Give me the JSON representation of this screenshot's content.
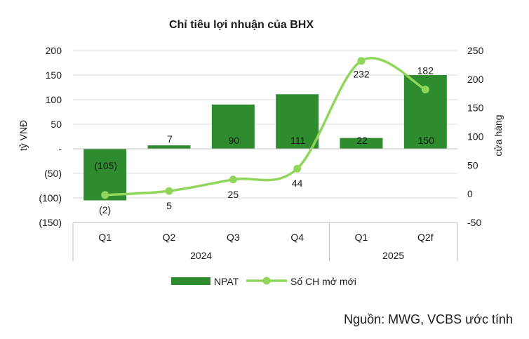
{
  "chart_data": {
    "type": "bar",
    "title": "Chỉ tiêu lợi nhuận của BHX",
    "ylabel": "tỷ VNĐ",
    "y2label": "cửa hàng",
    "categories": [
      "Q1",
      "Q2",
      "Q3",
      "Q4",
      "Q1",
      "Q2f"
    ],
    "groups": [
      {
        "label": "2024",
        "span": [
          0,
          3
        ]
      },
      {
        "label": "2025",
        "span": [
          4,
          5
        ]
      }
    ],
    "ylim": [
      -150,
      200
    ],
    "yticks": [
      200,
      150,
      100,
      50,
      0,
      -50,
      -100,
      -150
    ],
    "ytick_labels": [
      "200",
      "150",
      "100",
      "50",
      "-",
      "(50)",
      "(100)",
      "(150)"
    ],
    "y2lim": [
      -50,
      250
    ],
    "y2ticks": [
      250,
      200,
      150,
      100,
      50,
      0,
      -50
    ],
    "y2tick_labels": [
      "250",
      "200",
      "150",
      "100",
      "50",
      "0",
      "-50"
    ],
    "grid": true,
    "legend_position": "bottom",
    "series": [
      {
        "name": "NPAT",
        "type": "bar",
        "axis": "left",
        "color": "#2e8b2e",
        "values": [
          -105,
          7,
          90,
          111,
          22,
          150
        ],
        "labels": [
          "(105)",
          "7",
          "90",
          "111",
          "22",
          "150"
        ]
      },
      {
        "name": "Số CH mở mới",
        "type": "line",
        "axis": "right",
        "color": "#8fd65a",
        "values": [
          -2,
          5,
          25,
          44,
          232,
          182
        ],
        "labels": [
          "(2)",
          "5",
          "25",
          "44",
          "232",
          "182"
        ]
      }
    ]
  },
  "source": "Nguồn: MWG, VCBS ước tính"
}
